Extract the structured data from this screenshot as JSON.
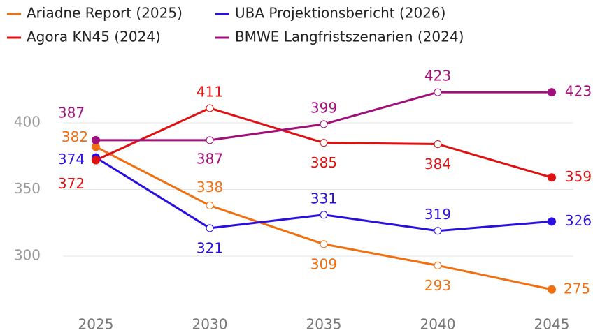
{
  "chart_data": {
    "type": "line",
    "categories": [
      "2025",
      "2030",
      "2035",
      "2040",
      "2045"
    ],
    "series": [
      {
        "name": "Ariadne Report (2025)",
        "color": "#f07010",
        "values": [
          382,
          338,
          309,
          293,
          275
        ]
      },
      {
        "name": "UBA Projektionsbericht (2026)",
        "color": "#2a10e0",
        "values": [
          374,
          321,
          331,
          319,
          326
        ]
      },
      {
        "name": "Agora KN45 (2024)",
        "color": "#e01010",
        "values": [
          372,
          411,
          385,
          384,
          359
        ]
      },
      {
        "name": "BMWE Langfristszenarien (2024)",
        "color": "#a0107a",
        "values": [
          387,
          387,
          399,
          423,
          423
        ]
      }
    ],
    "ylim": [
      265,
      430
    ],
    "yticks": [
      300,
      350,
      400
    ],
    "grid": true
  }
}
